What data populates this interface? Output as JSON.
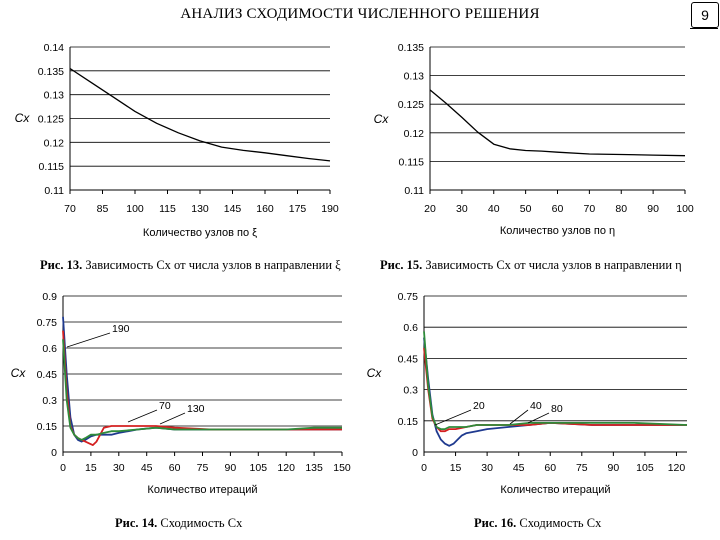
{
  "header": {
    "title": "АНАЛИЗ СХОДИМОСТИ ЧИСЛЕННОГО РЕШЕНИЯ",
    "page_number": "9"
  },
  "captions": [
    {
      "num": "Рис. 13.",
      "text": "Зависимость Cx от числа узлов в направлении ξ"
    },
    {
      "num": "Рис. 15.",
      "text": "Зависимость Cx от числа узлов в направлении η"
    },
    {
      "num": "Рис. 14.",
      "text": "Сходимость Cx"
    },
    {
      "num": "Рис. 16.",
      "text": "Сходимость Cx"
    }
  ],
  "colors": {
    "line": "#000000",
    "blue": "#1f3a8f",
    "red": "#d42020",
    "green": "#2e8b3a",
    "grid": "#000000"
  },
  "chart_data": [
    {
      "type": "line",
      "xlabel": "Количество узлов по ξ",
      "ylabel": "Cx",
      "x_ticks": [
        "70",
        "85",
        "100",
        "115",
        "130",
        "145",
        "160",
        "175",
        "190"
      ],
      "y_ticks": [
        "0.11",
        "0.115",
        "0.12",
        "0.125",
        "0.13",
        "0.135",
        "0.14"
      ],
      "xlim": [
        70,
        190
      ],
      "ylim": [
        0.11,
        0.14
      ],
      "grid": "horizontal",
      "series": [
        {
          "x": [
            70,
            80,
            90,
            100,
            110,
            120,
            130,
            140,
            150,
            160,
            170,
            180,
            190
          ],
          "y": [
            0.1355,
            0.1325,
            0.1295,
            0.1265,
            0.124,
            0.122,
            0.1203,
            0.119,
            0.1183,
            0.1178,
            0.1172,
            0.1166,
            0.1161
          ]
        }
      ]
    },
    {
      "type": "line",
      "xlabel": "Количество узлов по η",
      "ylabel": "Cx",
      "x_ticks": [
        "20",
        "30",
        "40",
        "50",
        "60",
        "70",
        "80",
        "90",
        "100"
      ],
      "y_ticks": [
        "0.11",
        "0.115",
        "0.12",
        "0.125",
        "0.13",
        "0.135"
      ],
      "xlim": [
        20,
        100
      ],
      "ylim": [
        0.11,
        0.135
      ],
      "grid": "horizontal",
      "series": [
        {
          "x": [
            20,
            25,
            30,
            35,
            40,
            45,
            50,
            55,
            60,
            70,
            80,
            90,
            100
          ],
          "y": [
            0.1275,
            0.1252,
            0.1227,
            0.1201,
            0.118,
            0.1172,
            0.1169,
            0.1168,
            0.1166,
            0.1163,
            0.1162,
            0.1161,
            0.116
          ]
        }
      ]
    },
    {
      "type": "line",
      "xlabel": "Количество итераций",
      "ylabel": "Cx",
      "x_ticks": [
        "0",
        "15",
        "30",
        "45",
        "60",
        "75",
        "90",
        "105",
        "120",
        "135",
        "150"
      ],
      "y_ticks": [
        "0",
        "0.15",
        "0.3",
        "0.45",
        "0.6",
        "0.75",
        "0.9"
      ],
      "xlim": [
        0,
        150
      ],
      "ylim": [
        0,
        0.9
      ],
      "grid": "horizontal",
      "annotations": [
        {
          "text": "190",
          "x": 2,
          "y": 0.6
        },
        {
          "text": "70",
          "x": 15,
          "y": 0.1
        },
        {
          "text": "130",
          "x": 48,
          "y": 0.14
        }
      ],
      "series": [
        {
          "color": "blue",
          "x": [
            0,
            2,
            4,
            6,
            8,
            10,
            12,
            15,
            18,
            22,
            26,
            30,
            40,
            50,
            60,
            80,
            100,
            120,
            135,
            150
          ],
          "y": [
            0.78,
            0.45,
            0.2,
            0.1,
            0.07,
            0.06,
            0.07,
            0.09,
            0.1,
            0.1,
            0.1,
            0.11,
            0.13,
            0.14,
            0.13,
            0.13,
            0.13,
            0.13,
            0.13,
            0.13
          ]
        },
        {
          "color": "red",
          "x": [
            0,
            2,
            4,
            6,
            8,
            10,
            12,
            14,
            16,
            18,
            22,
            26,
            30,
            40,
            50,
            60,
            80,
            100,
            120,
            135,
            150
          ],
          "y": [
            0.7,
            0.35,
            0.15,
            0.1,
            0.08,
            0.07,
            0.06,
            0.05,
            0.04,
            0.06,
            0.14,
            0.15,
            0.15,
            0.15,
            0.15,
            0.14,
            0.13,
            0.13,
            0.13,
            0.13,
            0.13
          ]
        },
        {
          "color": "green",
          "x": [
            0,
            2,
            4,
            6,
            8,
            10,
            12,
            15,
            18,
            22,
            26,
            30,
            40,
            50,
            60,
            80,
            100,
            120,
            135,
            150
          ],
          "y": [
            0.65,
            0.3,
            0.14,
            0.1,
            0.08,
            0.07,
            0.08,
            0.1,
            0.1,
            0.11,
            0.12,
            0.12,
            0.13,
            0.14,
            0.13,
            0.13,
            0.13,
            0.13,
            0.14,
            0.14
          ]
        }
      ]
    },
    {
      "type": "line",
      "xlabel": "Количество итераций",
      "ylabel": "Cx",
      "x_ticks": [
        "0",
        "15",
        "30",
        "45",
        "60",
        "75",
        "90",
        "105",
        "120"
      ],
      "y_ticks": [
        "0",
        "0.15",
        "0.3",
        "0.45",
        "0.6",
        "0.75"
      ],
      "xlim": [
        0,
        125
      ],
      "ylim": [
        0,
        0.75
      ],
      "grid": "horizontal",
      "annotations": [
        {
          "text": "20",
          "x": 21,
          "y": 0.16
        },
        {
          "text": "40",
          "x": 41,
          "y": 0.155
        },
        {
          "text": "80",
          "x": 48,
          "y": 0.145
        }
      ],
      "series": [
        {
          "color": "blue",
          "x": [
            0,
            2,
            4,
            6,
            8,
            10,
            12,
            14,
            16,
            18,
            20,
            25,
            30,
            40,
            50,
            60,
            80,
            100,
            125
          ],
          "y": [
            0.55,
            0.35,
            0.18,
            0.1,
            0.06,
            0.04,
            0.03,
            0.04,
            0.06,
            0.08,
            0.09,
            0.1,
            0.11,
            0.12,
            0.13,
            0.14,
            0.13,
            0.13,
            0.13
          ]
        },
        {
          "color": "red",
          "x": [
            0,
            2,
            4,
            6,
            8,
            10,
            12,
            15,
            20,
            25,
            30,
            40,
            50,
            60,
            80,
            100,
            125
          ],
          "y": [
            0.5,
            0.3,
            0.16,
            0.12,
            0.1,
            0.1,
            0.11,
            0.11,
            0.12,
            0.13,
            0.13,
            0.13,
            0.13,
            0.14,
            0.13,
            0.13,
            0.13
          ]
        },
        {
          "color": "green",
          "x": [
            0,
            2,
            4,
            6,
            8,
            10,
            12,
            15,
            20,
            25,
            30,
            40,
            50,
            60,
            80,
            100,
            125
          ],
          "y": [
            0.58,
            0.32,
            0.17,
            0.12,
            0.11,
            0.11,
            0.12,
            0.12,
            0.12,
            0.13,
            0.13,
            0.13,
            0.14,
            0.14,
            0.14,
            0.14,
            0.13
          ]
        }
      ]
    }
  ]
}
